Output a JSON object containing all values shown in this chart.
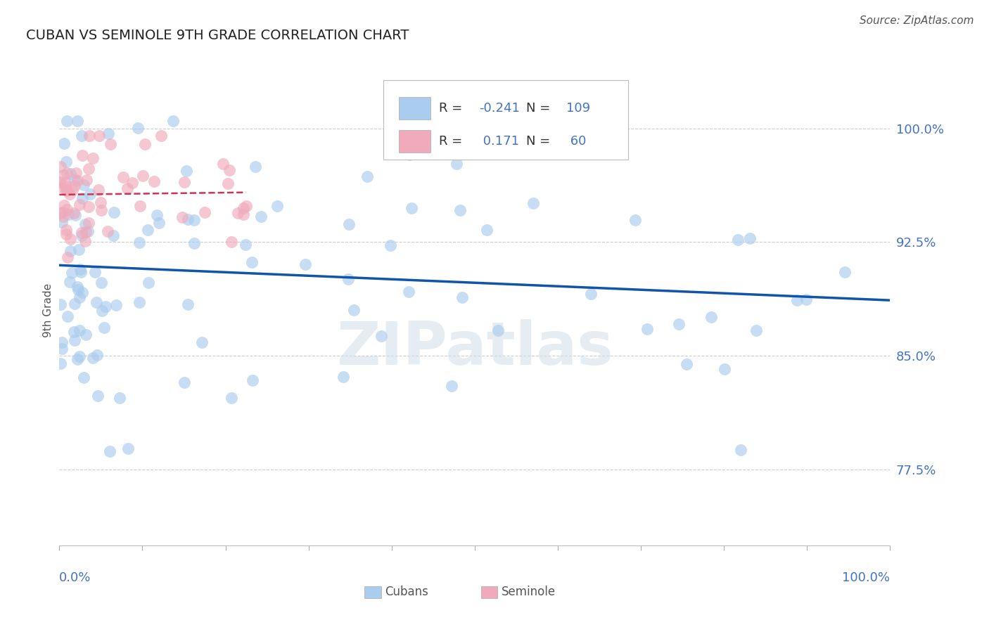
{
  "title": "CUBAN VS SEMINOLE 9TH GRADE CORRELATION CHART",
  "source": "Source: ZipAtlas.com",
  "ylabel": "9th Grade",
  "xlim": [
    0.0,
    1.0
  ],
  "ylim": [
    0.725,
    1.035
  ],
  "yticks": [
    0.775,
    0.85,
    0.925,
    1.0
  ],
  "ytick_labels": [
    "77.5%",
    "85.0%",
    "92.5%",
    "100.0%"
  ],
  "cubans_R": -0.241,
  "cubans_N": 109,
  "seminole_R": 0.171,
  "seminole_N": 60,
  "cubans_color": "#aaccee",
  "seminole_color": "#f0aabb",
  "cubans_line_color": "#1155aa",
  "seminole_line_color": "#cc3355",
  "blue_text": "#4472c4",
  "dark_text": "#333333",
  "background_color": "#ffffff",
  "grid_color": "#cccccc",
  "watermark_color": "#d0dfe8"
}
